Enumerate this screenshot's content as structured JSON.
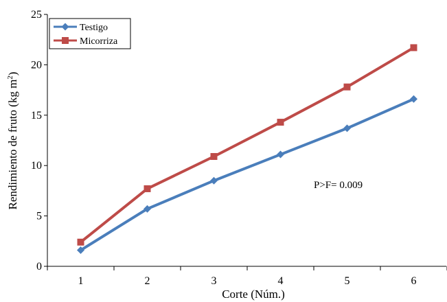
{
  "chart_data": {
    "type": "line",
    "x": [
      1,
      2,
      3,
      4,
      5,
      6
    ],
    "series": [
      {
        "name": "Testigo",
        "values": [
          1.6,
          5.7,
          8.5,
          11.1,
          13.7,
          16.6
        ],
        "color": "#4a7ebb",
        "marker": "diamond"
      },
      {
        "name": "Micorriza",
        "values": [
          2.4,
          7.7,
          10.9,
          14.3,
          17.8,
          21.7
        ],
        "color": "#be4b48",
        "marker": "square"
      }
    ],
    "xlabel": "Corte (Núm.)",
    "ylabel_main": "Rendimiento de fruto (kg m",
    "ylabel_sup": "2",
    "ylabel_end": ")",
    "xlim": [
      0.5,
      6.5
    ],
    "ylim": [
      0,
      25
    ],
    "x_ticks": [
      "1",
      "2",
      "3",
      "4",
      "5",
      "6"
    ],
    "y_ticks": [
      "0",
      "5",
      "10",
      "15",
      "20",
      "25"
    ],
    "annotation": "P>F= 0.009",
    "legend_position": "top-left",
    "grid": false
  }
}
